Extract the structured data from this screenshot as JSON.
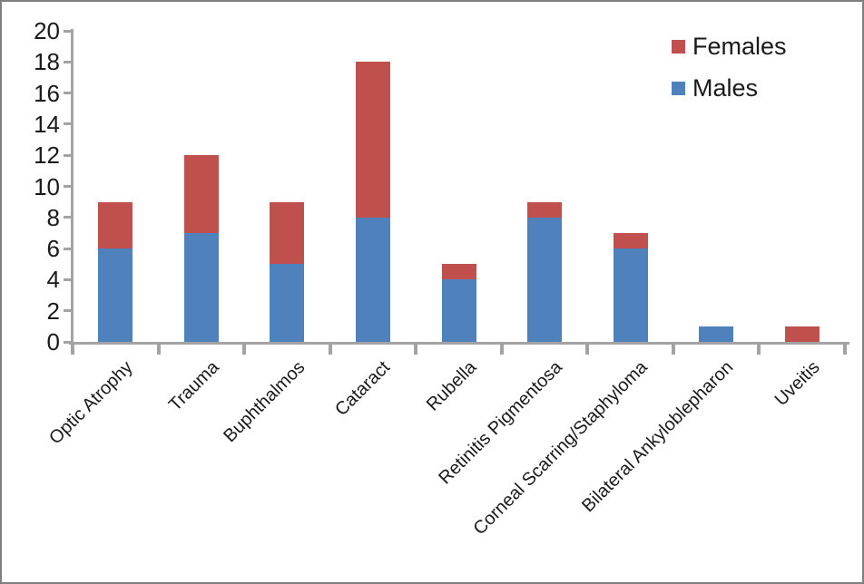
{
  "chart_data": {
    "type": "bar",
    "stacked": true,
    "title": "",
    "xlabel": "",
    "ylabel": "",
    "categories": [
      "Optic Atrophy",
      "Trauma",
      "Buphthalmos",
      "Cataract",
      "Rubella",
      "Retinitis Pigmentosa",
      "Corneal Scarring/Staphyloma",
      "Bilateral Ankyloblepharon",
      "Uveitis"
    ],
    "series": [
      {
        "name": "Males",
        "color": "#4F81BD",
        "values": [
          6,
          7,
          5,
          8,
          4,
          8,
          6,
          1,
          0
        ]
      },
      {
        "name": "Females",
        "color": "#C0504D",
        "values": [
          3,
          5,
          4,
          10,
          1,
          1,
          1,
          0,
          1
        ]
      }
    ],
    "totals": [
      9,
      12,
      9,
      18,
      5,
      9,
      7,
      1,
      1
    ],
    "ylim": [
      0,
      20
    ],
    "ytick_step": 2,
    "grid": false,
    "legend_position": "top-right",
    "axis_color": "#A3A3A3",
    "text_color": "#1A1A1A"
  },
  "legend": {
    "items": [
      {
        "label": "Females",
        "color": "#C0504D"
      },
      {
        "label": "Males",
        "color": "#4F81BD"
      }
    ]
  }
}
